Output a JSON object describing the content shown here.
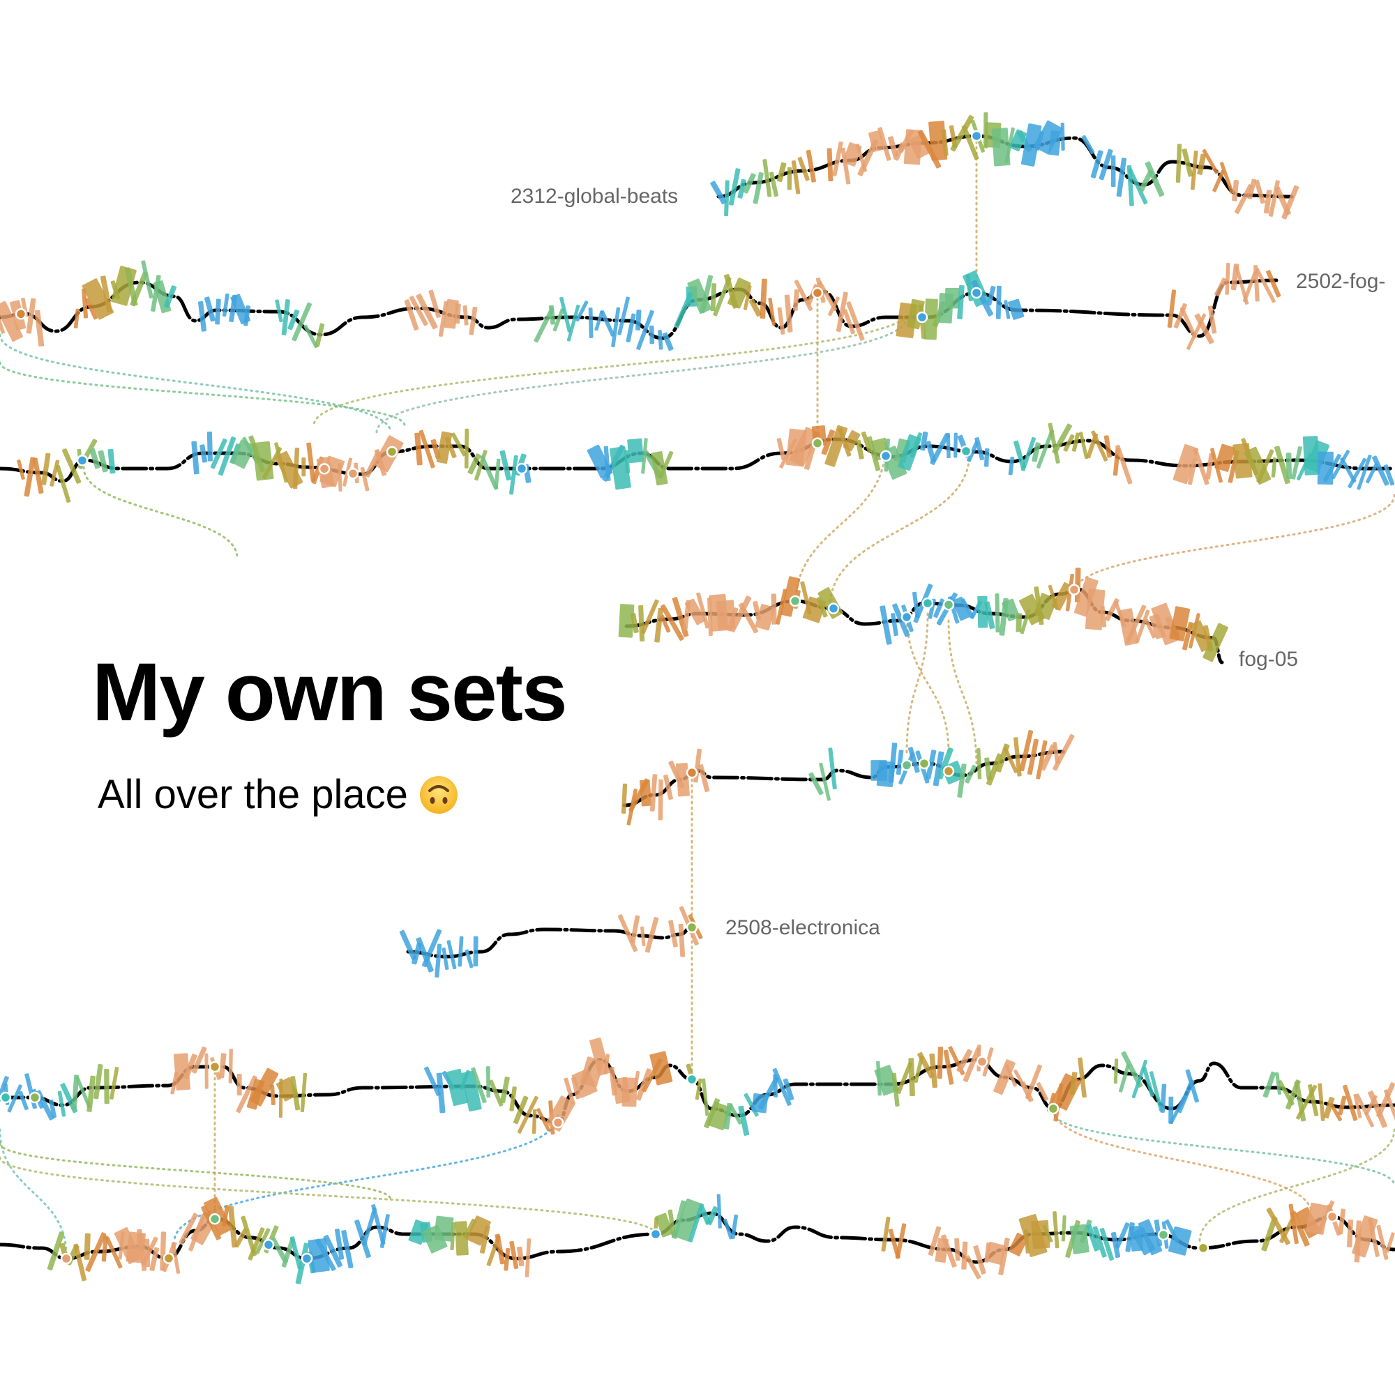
{
  "heading": {
    "title": "My own sets",
    "subtitle": "All over the place",
    "emoji_icon": "upside-down-face-icon"
  },
  "set_labels": {
    "global_beats": "2312-global-beats",
    "fog_2502": "2502-fog-",
    "fog_05": "fog-05",
    "electronica": "2508-electronica"
  },
  "palette": [
    "#3fa3de",
    "#3cbdb4",
    "#6fbf83",
    "#8fb552",
    "#a8a83c",
    "#c49a3a",
    "#d9863a",
    "#e6a070"
  ],
  "line_color": "#000000"
}
